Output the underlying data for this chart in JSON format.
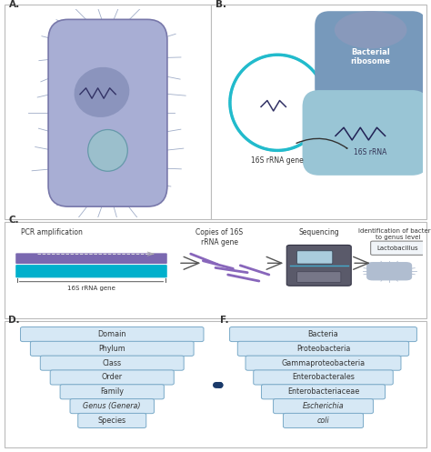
{
  "bg_color": "#ffffff",
  "section_border": "#bbbbbb",
  "panel_label_color": "#333333",
  "taxonomy_left": [
    "Domain",
    "Phylum",
    "Class",
    "Order",
    "Family",
    "Genus (Genera)",
    "Species"
  ],
  "taxonomy_left_italic": [
    false,
    false,
    false,
    false,
    false,
    true,
    false
  ],
  "taxonomy_right": [
    "Bacteria",
    "Proteobacteria",
    "Gammaproteobacteria",
    "Enterobacterales",
    "Enterobacteriaceae",
    "Escherichia",
    "coli"
  ],
  "taxonomy_right_italic": [
    false,
    false,
    false,
    false,
    false,
    true,
    true
  ],
  "box_fill": "#d6e8f5",
  "box_edge": "#7aaac8",
  "box_text_color": "#333333",
  "arrow_color": "#1a3a6a",
  "bact_body_color": "#a8aed4",
  "bact_body_edge": "#7878aa",
  "bact_inner_color": "#8892bb",
  "bact_ribo_fill": "#9bbfcc",
  "bact_ribo_edge": "#6699aa",
  "dna_wave_color": "#333366",
  "pcr_top_color": "#7a68b0",
  "pcr_bottom_color": "#00b0cc",
  "pcr_dot_color": "#cccccc",
  "pcr_arrow_color": "#aaaaaa",
  "frag_color": "#8866bb",
  "seq_body": "#555555",
  "seq_body2": "#444444",
  "seq_screen": "#aaccdd",
  "seq_tray": "#888888",
  "lacto_bact_color": "#b0bdd0",
  "lacto_box_fill": "#f0f4f8",
  "lacto_box_edge": "#888888",
  "circle_dna_color": "#22bbcc",
  "ribo_blob_fill": "#7799bb",
  "ribo_blob_fill2": "#8899bb",
  "rna_blob_fill": "#99c5d5",
  "rna_wave_color": "#222255",
  "arrow_curve_color": "#333333",
  "spike_color": "#a0adc8"
}
